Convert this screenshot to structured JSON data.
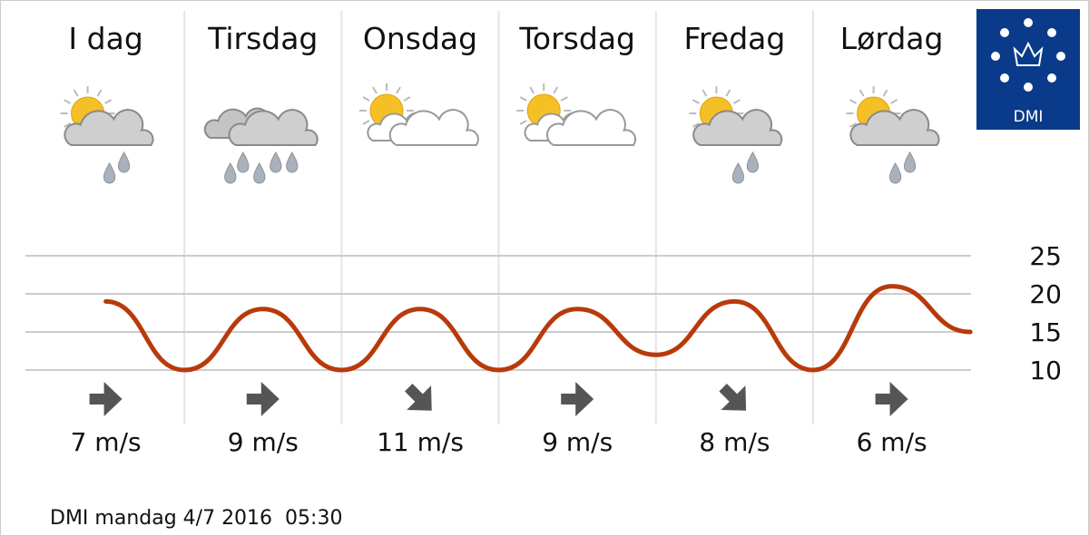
{
  "chart_data": {
    "type": "line",
    "days": [
      "I dag",
      "Tirsdag",
      "Onsdag",
      "Torsdag",
      "Fredag",
      "Lørdag"
    ],
    "icons": [
      "sun-cloud-rain",
      "cloud-rain",
      "sun-clouds",
      "sun-clouds",
      "sun-cloud-rain",
      "sun-cloud-rain"
    ],
    "categories": [
      null,
      null,
      null,
      null,
      null,
      null,
      null,
      null,
      null,
      null,
      null,
      null
    ],
    "series": [
      {
        "color": "#b83a0b",
        "values": [
          19,
          10,
          18,
          10,
          18,
          10,
          18,
          12,
          19,
          10,
          21,
          15
        ]
      }
    ],
    "ylim": [
      10,
      25
    ],
    "yticks": [
      10,
      15,
      20,
      25
    ],
    "grid": true,
    "wind": {
      "values": [
        7,
        9,
        11,
        9,
        8,
        6
      ],
      "value_labels": [
        "7 m/s",
        "9 m/s",
        "11 m/s",
        "9 m/s",
        "8 m/s",
        "6 m/s"
      ],
      "directions": [
        "E",
        "E",
        "SE",
        "E",
        "SE",
        "E"
      ]
    },
    "logo": "DMI",
    "footer": "DMI mandag 4/7 2016  05:30"
  }
}
